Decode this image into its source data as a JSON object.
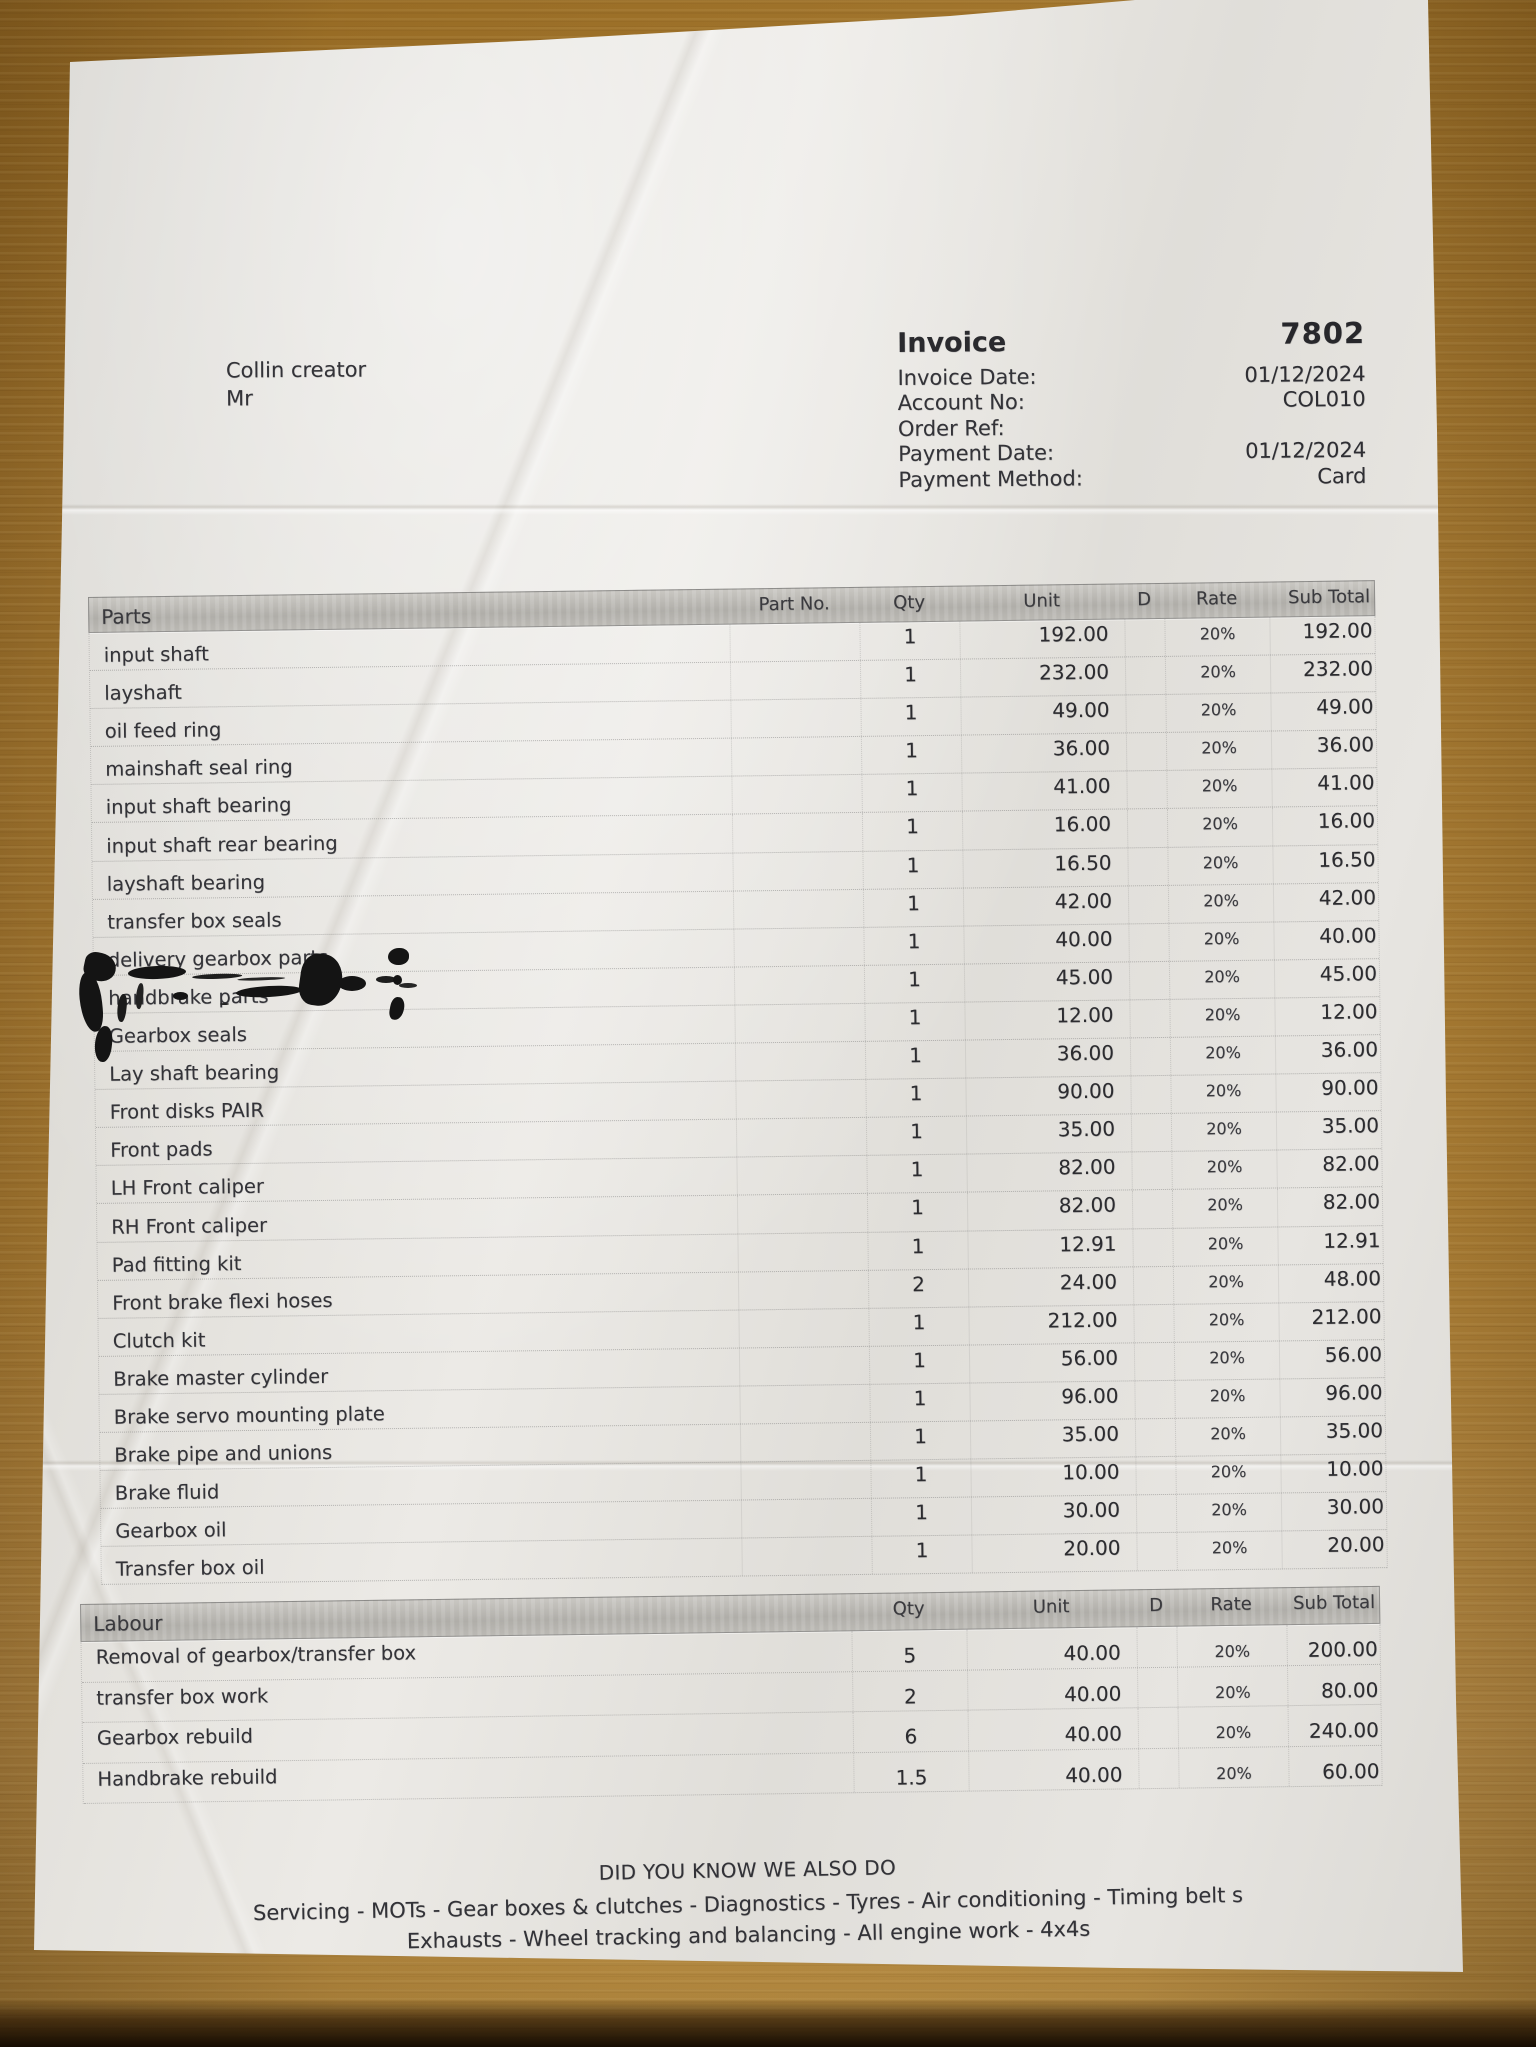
{
  "scene": {
    "wood_color": "#ab7b30",
    "paper_color": "#e2e0db",
    "ink_color": "#141414",
    "header_bar_color": "#b5b3ae"
  },
  "invoice": {
    "customer_name": "Collin creator",
    "customer_title": "Mr",
    "title": "Invoice",
    "number": "7802",
    "fields": [
      {
        "label": "Invoice Date:",
        "value": "01/12/2024"
      },
      {
        "label": "Account No:",
        "value": "COL010"
      },
      {
        "label": "Order Ref:",
        "value": ""
      },
      {
        "label": "Payment Date:",
        "value": "01/12/2024"
      },
      {
        "label": "Payment Method:",
        "value": "Card"
      }
    ]
  },
  "parts_table": {
    "title": "Parts",
    "headers": [
      "Part No.",
      "Qty",
      "Unit",
      "D",
      "Rate",
      "Sub Total"
    ],
    "rows": [
      {
        "name": "input shaft",
        "part_no": "",
        "qty": "1",
        "unit": "192.00",
        "d": "",
        "rate": "20%",
        "sub": "192.00"
      },
      {
        "name": "layshaft",
        "part_no": "",
        "qty": "1",
        "unit": "232.00",
        "d": "",
        "rate": "20%",
        "sub": "232.00"
      },
      {
        "name": "oil feed ring",
        "part_no": "",
        "qty": "1",
        "unit": "49.00",
        "d": "",
        "rate": "20%",
        "sub": "49.00"
      },
      {
        "name": "mainshaft seal ring",
        "part_no": "",
        "qty": "1",
        "unit": "36.00",
        "d": "",
        "rate": "20%",
        "sub": "36.00"
      },
      {
        "name": "input shaft bearing",
        "part_no": "",
        "qty": "1",
        "unit": "41.00",
        "d": "",
        "rate": "20%",
        "sub": "41.00"
      },
      {
        "name": "input shaft rear bearing",
        "part_no": "",
        "qty": "1",
        "unit": "16.00",
        "d": "",
        "rate": "20%",
        "sub": "16.00"
      },
      {
        "name": "layshaft bearing",
        "part_no": "",
        "qty": "1",
        "unit": "16.50",
        "d": "",
        "rate": "20%",
        "sub": "16.50"
      },
      {
        "name": "transfer box seals",
        "part_no": "",
        "qty": "1",
        "unit": "42.00",
        "d": "",
        "rate": "20%",
        "sub": "42.00"
      },
      {
        "name": "delivery gearbox parts",
        "part_no": "",
        "qty": "1",
        "unit": "40.00",
        "d": "",
        "rate": "20%",
        "sub": "40.00"
      },
      {
        "name": "handbrake parts",
        "part_no": "",
        "qty": "1",
        "unit": "45.00",
        "d": "",
        "rate": "20%",
        "sub": "45.00"
      },
      {
        "name": "Gearbox seals",
        "part_no": "",
        "qty": "1",
        "unit": "12.00",
        "d": "",
        "rate": "20%",
        "sub": "12.00"
      },
      {
        "name": "Lay shaft bearing",
        "part_no": "",
        "qty": "1",
        "unit": "36.00",
        "d": "",
        "rate": "20%",
        "sub": "36.00"
      },
      {
        "name": "Front disks PAIR",
        "part_no": "",
        "qty": "1",
        "unit": "90.00",
        "d": "",
        "rate": "20%",
        "sub": "90.00"
      },
      {
        "name": "Front pads",
        "part_no": "",
        "qty": "1",
        "unit": "35.00",
        "d": "",
        "rate": "20%",
        "sub": "35.00"
      },
      {
        "name": "LH Front caliper",
        "part_no": "",
        "qty": "1",
        "unit": "82.00",
        "d": "",
        "rate": "20%",
        "sub": "82.00"
      },
      {
        "name": "RH Front caliper",
        "part_no": "",
        "qty": "1",
        "unit": "82.00",
        "d": "",
        "rate": "20%",
        "sub": "82.00"
      },
      {
        "name": "Pad fitting kit",
        "part_no": "",
        "qty": "1",
        "unit": "12.91",
        "d": "",
        "rate": "20%",
        "sub": "12.91"
      },
      {
        "name": "Front brake flexi hoses",
        "part_no": "",
        "qty": "2",
        "unit": "24.00",
        "d": "",
        "rate": "20%",
        "sub": "48.00"
      },
      {
        "name": "Clutch kit",
        "part_no": "",
        "qty": "1",
        "unit": "212.00",
        "d": "",
        "rate": "20%",
        "sub": "212.00"
      },
      {
        "name": "Brake master cylinder",
        "part_no": "",
        "qty": "1",
        "unit": "56.00",
        "d": "",
        "rate": "20%",
        "sub": "56.00"
      },
      {
        "name": "Brake servo mounting plate",
        "part_no": "",
        "qty": "1",
        "unit": "96.00",
        "d": "",
        "rate": "20%",
        "sub": "96.00"
      },
      {
        "name": "Brake pipe and unions",
        "part_no": "",
        "qty": "1",
        "unit": "35.00",
        "d": "",
        "rate": "20%",
        "sub": "35.00"
      },
      {
        "name": "Brake fluid",
        "part_no": "",
        "qty": "1",
        "unit": "10.00",
        "d": "",
        "rate": "20%",
        "sub": "10.00"
      },
      {
        "name": "Gearbox oil",
        "part_no": "",
        "qty": "1",
        "unit": "30.00",
        "d": "",
        "rate": "20%",
        "sub": "30.00"
      },
      {
        "name": "Transfer box oil",
        "part_no": "",
        "qty": "1",
        "unit": "20.00",
        "d": "",
        "rate": "20%",
        "sub": "20.00"
      }
    ]
  },
  "labour_table": {
    "title": "Labour",
    "headers": [
      "Qty",
      "Unit",
      "D",
      "Rate",
      "Sub Total"
    ],
    "rows": [
      {
        "name": "Removal of gearbox/transfer box",
        "qty": "5",
        "unit": "40.00",
        "d": "",
        "rate": "20%",
        "sub": "200.00"
      },
      {
        "name": "transfer box work",
        "qty": "2",
        "unit": "40.00",
        "d": "",
        "rate": "20%",
        "sub": "80.00"
      },
      {
        "name": "Gearbox rebuild",
        "qty": "6",
        "unit": "40.00",
        "d": "",
        "rate": "20%",
        "sub": "240.00"
      },
      {
        "name": "Handbrake rebuild",
        "qty": "1.5",
        "unit": "40.00",
        "d": "",
        "rate": "20%",
        "sub": "60.00"
      }
    ]
  },
  "footer": {
    "line1": "DID YOU KNOW WE ALSO DO",
    "line2": "Servicing - MOTs - Gear boxes & clutches - Diagnostics - Tyres - Air conditioning - Timing belt s",
    "line3": "Exhausts - Wheel tracking and balancing - All engine work - 4x4s"
  }
}
